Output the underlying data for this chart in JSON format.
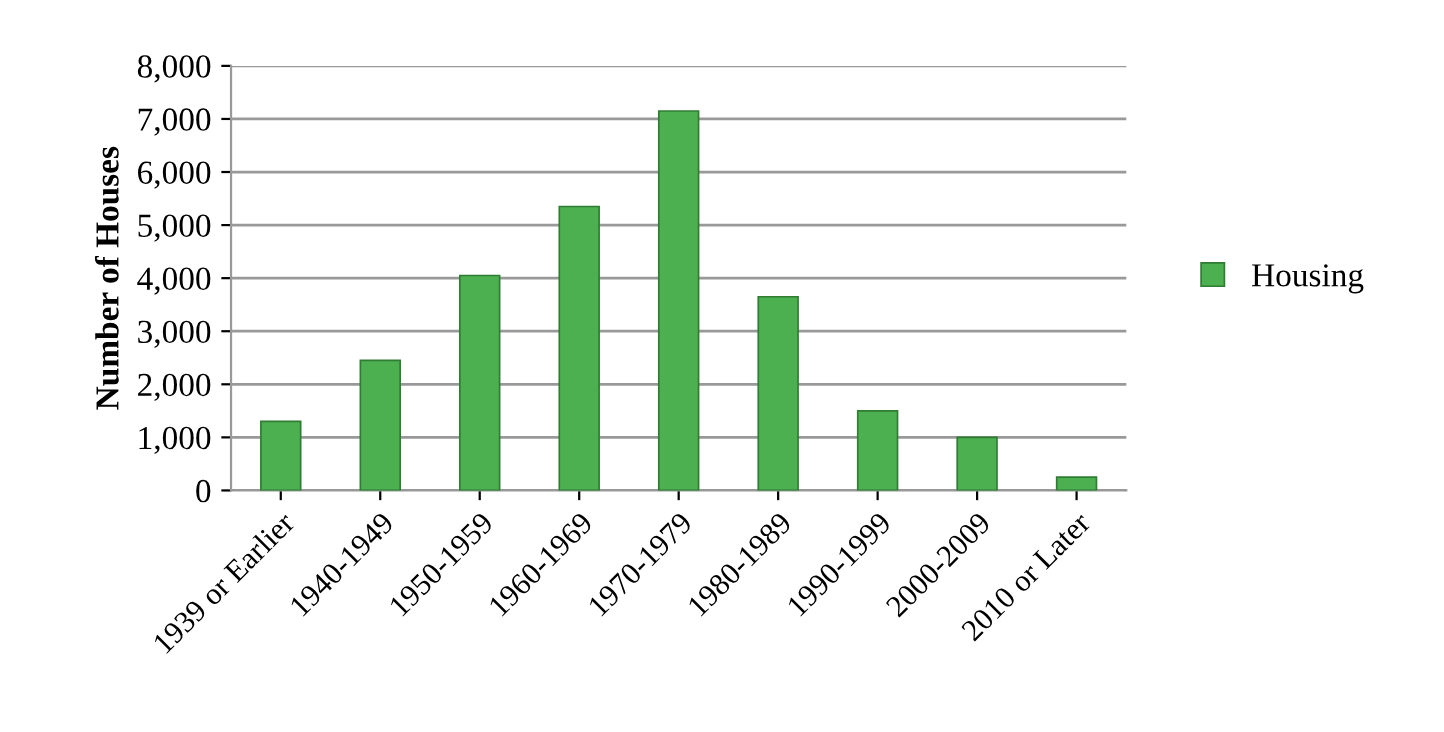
{
  "chart_data": {
    "type": "bar",
    "ylabel": "Number of Houses",
    "categories": [
      "1939 or Earlier",
      "1940-1949",
      "1950-1959",
      "1960-1969",
      "1970-1979",
      "1980-1989",
      "1990-1999",
      "2000-2009",
      "2010 or Later"
    ],
    "series": [
      {
        "name": "Housing",
        "color": "#4caf50",
        "values": [
          1300,
          2450,
          4050,
          5350,
          7150,
          3650,
          1500,
          1000,
          250
        ]
      }
    ],
    "ylim": [
      0,
      8000
    ],
    "yticks": [
      {
        "value": 0,
        "label": "0"
      },
      {
        "value": 1000,
        "label": "1,000"
      },
      {
        "value": 2000,
        "label": "2,000"
      },
      {
        "value": 3000,
        "label": "3,000"
      },
      {
        "value": 4000,
        "label": "4,000"
      },
      {
        "value": 5000,
        "label": "5,000"
      },
      {
        "value": 6000,
        "label": "6,000"
      },
      {
        "value": 7000,
        "label": "7,000"
      },
      {
        "value": 8000,
        "label": "8,000"
      }
    ],
    "grid": "y",
    "legend": "right"
  }
}
